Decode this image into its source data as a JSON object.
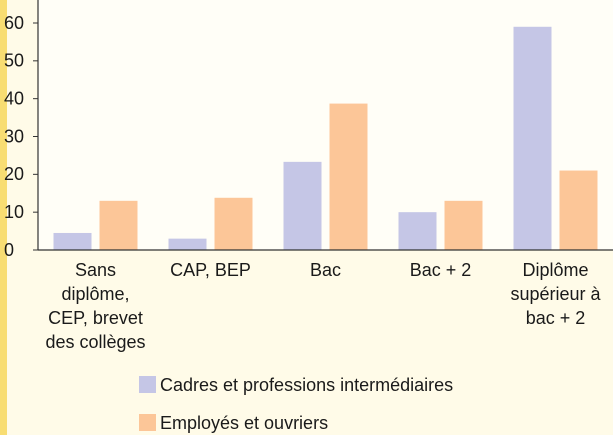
{
  "chart_data": {
    "type": "bar",
    "categories": [
      "Sans diplôme, CEP, brevet des collèges",
      "CAP, BEP",
      "Bac",
      "Bac + 2",
      "Diplôme supérieur à bac + 2"
    ],
    "series": [
      {
        "name": "Cadres et professions intermédiaires",
        "color": "#c5c6e6",
        "values": [
          4.5,
          3,
          23.3,
          10,
          59
        ]
      },
      {
        "name": "Employés et ouvriers",
        "color": "#fcc698",
        "values": [
          13,
          13.8,
          38.7,
          13,
          21
        ]
      }
    ],
    "ylim": [
      0,
      60
    ],
    "yticks": [
      0,
      10,
      20,
      30,
      40,
      50,
      60
    ],
    "legend": "bottom"
  }
}
